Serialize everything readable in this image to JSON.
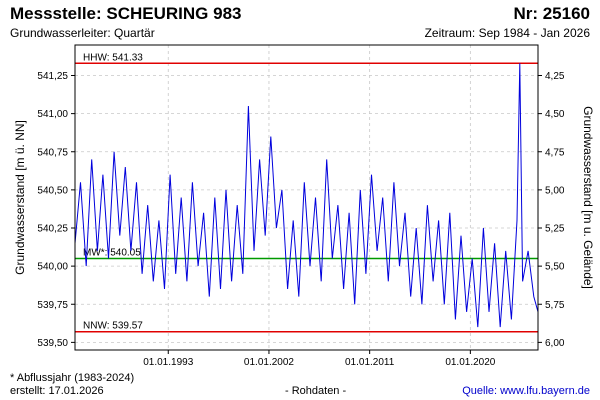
{
  "header": {
    "title": "Messstelle: SCHEURING 983",
    "number": "Nr: 25160",
    "aquifer": "Grundwasserleiter: Quartär",
    "period": "Zeitraum: Sep 1984 - Jan 2026"
  },
  "footer": {
    "footnote": "* Abflussjahr (1983-2024)",
    "created": "erstellt:  17.01.2026",
    "rawdata": "- Rohdaten -",
    "source": "Quelle: www.lfu.bayern.de"
  },
  "colors": {
    "series": "#0000dd",
    "extreme_line": "#e00000",
    "mean_line": "#009900",
    "grid": "#c8c8c8",
    "frame": "#000000"
  },
  "chart_data": {
    "type": "line",
    "ylabel_left": "Grundwasserstand [m ü. NN]",
    "ylabel_right": "Grundwasserstand [m u. Gelände]",
    "ylim": [
      539.45,
      541.45
    ],
    "yticks_left": [
      539.5,
      539.75,
      540.0,
      540.25,
      540.5,
      540.75,
      541.0,
      541.25
    ],
    "yticks_left_labels": [
      "539,50",
      "539,75",
      "540,00",
      "540,25",
      "540,50",
      "540,75",
      "541,00",
      "541,25"
    ],
    "yticks_right_labels": [
      "6,00",
      "5,75",
      "5,50",
      "5,25",
      "5,00",
      "4,75",
      "4,50",
      "4,25"
    ],
    "xlim": [
      "1984-09-01",
      "2026-01-17"
    ],
    "xticks": [
      "1993-01-01",
      "2002-01-01",
      "2011-01-01",
      "2020-01-01"
    ],
    "xtick_labels": [
      "01.01.1993",
      "01.01.2002",
      "01.01.2011",
      "01.01.2020"
    ],
    "reference_lines": [
      {
        "label": "HHW: 541.33",
        "value": 541.33,
        "color": "#e00000"
      },
      {
        "label": "MW*: 540.05",
        "value": 540.05,
        "color": "#009900"
      },
      {
        "label": "NNW: 539.57",
        "value": 539.57,
        "color": "#e00000"
      }
    ],
    "grid": true,
    "series": [
      {
        "x": [
          "1984-09-01",
          "1985-03-01",
          "1985-09-01",
          "1986-03-01",
          "1986-09-01",
          "1987-03-01",
          "1987-09-01",
          "1988-03-01",
          "1988-09-01",
          "1989-03-01",
          "1989-09-01",
          "1990-03-01",
          "1990-09-01",
          "1991-03-01",
          "1991-09-01",
          "1992-03-01",
          "1992-09-01",
          "1993-03-01",
          "1993-09-01",
          "1994-03-01",
          "1994-09-01",
          "1995-03-01",
          "1995-09-01",
          "1996-03-01",
          "1996-09-01",
          "1997-03-01",
          "1997-09-01",
          "1998-03-01",
          "1998-09-01",
          "1999-03-01",
          "1999-09-01",
          "2000-03-01",
          "2000-09-01",
          "2001-03-01",
          "2001-09-01",
          "2002-03-01",
          "2002-09-01",
          "2003-03-01",
          "2003-09-01",
          "2004-03-01",
          "2004-09-01",
          "2005-03-01",
          "2005-09-01",
          "2006-03-01",
          "2006-09-01",
          "2007-03-01",
          "2007-09-01",
          "2008-03-01",
          "2008-09-01",
          "2009-03-01",
          "2009-09-01",
          "2010-03-01",
          "2010-09-01",
          "2011-03-01",
          "2011-09-01",
          "2012-03-01",
          "2012-09-01",
          "2013-03-01",
          "2013-09-01",
          "2014-03-01",
          "2014-09-01",
          "2015-03-01",
          "2015-09-01",
          "2016-03-01",
          "2016-09-01",
          "2017-03-01",
          "2017-09-01",
          "2018-03-01",
          "2018-09-01",
          "2019-03-01",
          "2019-09-01",
          "2020-03-01",
          "2020-09-01",
          "2021-03-01",
          "2021-09-01",
          "2022-03-01",
          "2022-09-01",
          "2023-03-01",
          "2023-09-01",
          "2024-03-01",
          "2024-06-01",
          "2024-09-01",
          "2025-03-01",
          "2025-09-01",
          "2026-01-17"
        ],
        "y": [
          540.15,
          540.55,
          540.0,
          540.7,
          540.1,
          540.6,
          540.05,
          540.75,
          540.2,
          540.65,
          540.1,
          540.55,
          539.95,
          540.4,
          539.9,
          540.3,
          539.85,
          540.6,
          539.95,
          540.45,
          539.9,
          540.55,
          540.0,
          540.35,
          539.8,
          540.45,
          539.85,
          540.5,
          539.9,
          540.4,
          539.95,
          541.05,
          540.1,
          540.7,
          540.2,
          540.85,
          540.25,
          540.5,
          539.85,
          540.3,
          539.8,
          540.55,
          540.0,
          540.45,
          539.9,
          540.7,
          540.05,
          540.4,
          539.85,
          540.35,
          539.75,
          540.5,
          539.95,
          540.6,
          540.1,
          540.45,
          539.9,
          540.55,
          540.0,
          540.35,
          539.8,
          540.25,
          539.75,
          540.4,
          539.9,
          540.3,
          539.75,
          540.35,
          539.65,
          540.2,
          539.7,
          540.05,
          539.6,
          540.25,
          539.7,
          540.15,
          539.6,
          540.1,
          539.65,
          540.3,
          541.33,
          539.9,
          540.1,
          539.8,
          539.7
        ]
      }
    ]
  }
}
